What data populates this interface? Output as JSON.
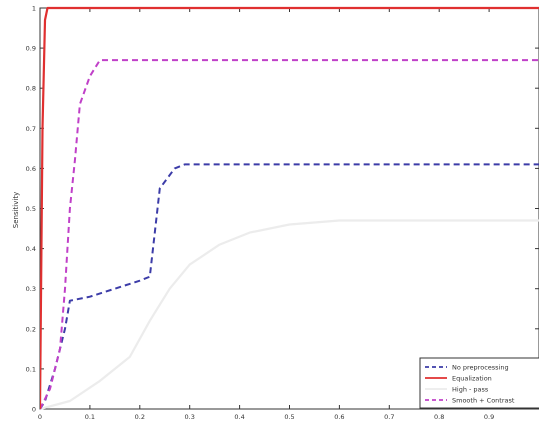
{
  "chart_data": {
    "type": "line",
    "title": "",
    "xlabel": "",
    "ylabel": "Sensitivity",
    "xlim": [
      0,
      1
    ],
    "ylim": [
      0,
      1
    ],
    "xticks": [
      "0",
      "0.1",
      "0.2",
      "0.3",
      "0.4",
      "0.5",
      "0.6",
      "0.7",
      "0.8",
      "0.9"
    ],
    "yticks": [
      "0",
      "0.1",
      "0.2",
      "0.3",
      "0.4",
      "0.5",
      "0.6",
      "0.7",
      "0.8",
      "0.9",
      "1"
    ],
    "grid": false,
    "legend_position": "bottom-right",
    "series": [
      {
        "name": "No preprocessing",
        "color": "#3c3ca8",
        "dash": "dashed",
        "points": [
          [
            0,
            0
          ],
          [
            0.01,
            0.02
          ],
          [
            0.03,
            0.1
          ],
          [
            0.05,
            0.2
          ],
          [
            0.06,
            0.27
          ],
          [
            0.1,
            0.28
          ],
          [
            0.15,
            0.3
          ],
          [
            0.2,
            0.32
          ],
          [
            0.22,
            0.33
          ],
          [
            0.24,
            0.55
          ],
          [
            0.27,
            0.6
          ],
          [
            0.29,
            0.61
          ],
          [
            0.4,
            0.61
          ],
          [
            0.6,
            0.61
          ],
          [
            1.0,
            0.61
          ]
        ]
      },
      {
        "name": "Equalization",
        "color": "#e03030",
        "dash": "solid",
        "points": [
          [
            0,
            0
          ],
          [
            0.005,
            0.7
          ],
          [
            0.01,
            0.97
          ],
          [
            0.015,
            1.0
          ],
          [
            1.0,
            1.0
          ]
        ]
      },
      {
        "name": "High - pass",
        "color": "#ececec",
        "dash": "solid",
        "points": [
          [
            0,
            0
          ],
          [
            0.06,
            0.02
          ],
          [
            0.12,
            0.07
          ],
          [
            0.18,
            0.13
          ],
          [
            0.22,
            0.22
          ],
          [
            0.26,
            0.3
          ],
          [
            0.3,
            0.36
          ],
          [
            0.36,
            0.41
          ],
          [
            0.42,
            0.44
          ],
          [
            0.5,
            0.46
          ],
          [
            0.6,
            0.47
          ],
          [
            0.7,
            0.47
          ],
          [
            0.9,
            0.47
          ],
          [
            1.0,
            0.47
          ]
        ]
      },
      {
        "name": "Smooth + Contrast",
        "color": "#c040c8",
        "dash": "dashed",
        "points": [
          [
            0,
            0
          ],
          [
            0.02,
            0.05
          ],
          [
            0.04,
            0.15
          ],
          [
            0.05,
            0.3
          ],
          [
            0.06,
            0.5
          ],
          [
            0.07,
            0.62
          ],
          [
            0.08,
            0.76
          ],
          [
            0.1,
            0.83
          ],
          [
            0.12,
            0.87
          ],
          [
            0.2,
            0.87
          ],
          [
            0.5,
            0.87
          ],
          [
            1.0,
            0.87
          ]
        ]
      }
    ]
  }
}
